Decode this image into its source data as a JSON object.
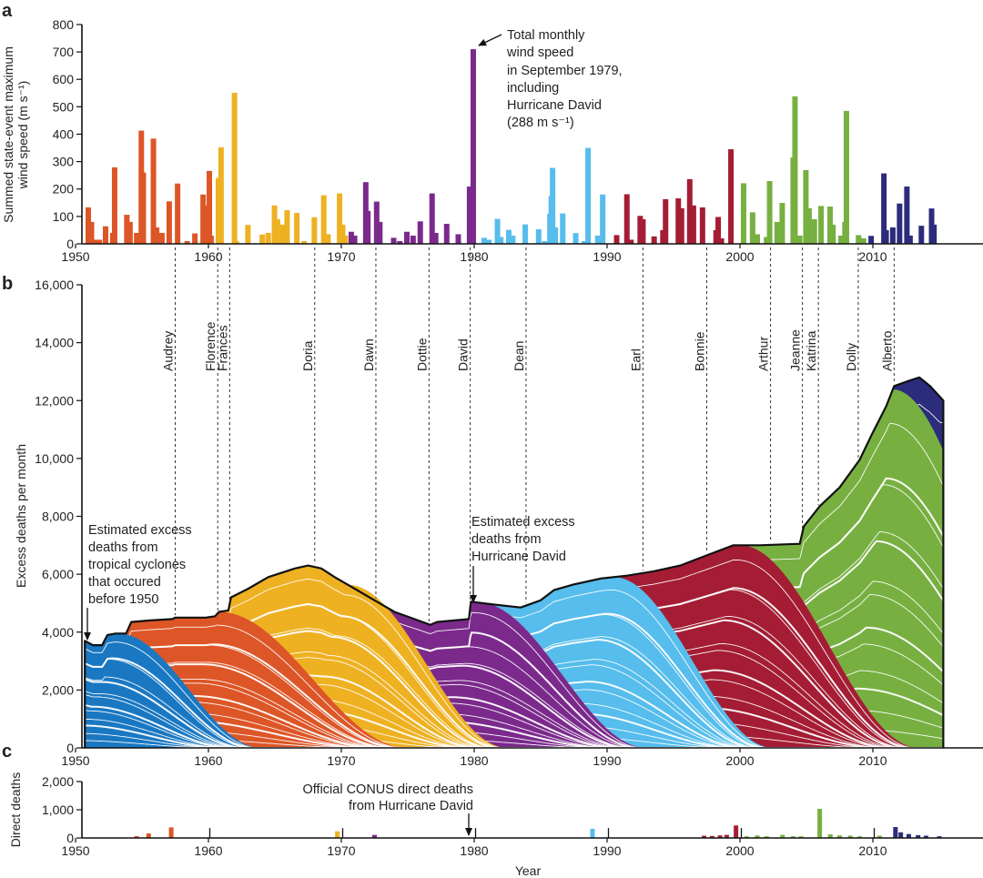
{
  "panels": {
    "a": "a",
    "b": "b",
    "c": "c"
  },
  "chart_data": [
    {
      "id": "a",
      "type": "bar",
      "ylabel_line1": "Summed state-event maximum",
      "ylabel_line2": "wind speed (m s⁻¹)",
      "xlim": [
        1950,
        2017
      ],
      "ylim": [
        0,
        800
      ],
      "yticks": [
        "0",
        "100",
        "200",
        "300",
        "400",
        "500",
        "600",
        "700",
        "800"
      ],
      "ytick_values": [
        0,
        100,
        200,
        300,
        400,
        500,
        600,
        700,
        800
      ],
      "xticks": [
        "1950",
        "1960",
        "1970",
        "1980",
        "1990",
        "2000",
        "2010"
      ],
      "xtick_values": [
        1950,
        1960,
        1970,
        1980,
        1990,
        2000,
        2010
      ],
      "color_breaks": [
        1960.5,
        1970.5,
        1980.3,
        1990.5,
        2000.0,
        2009.5
      ],
      "colors": [
        "#dd5627",
        "#eeb122",
        "#7b2a8c",
        "#56bdec",
        "#a41d34",
        "#77b041",
        "#2b2c7c"
      ],
      "bars": [
        [
          1950.96,
          133
        ],
        [
          1951.2,
          80
        ],
        [
          1951.5,
          15
        ],
        [
          1951.8,
          15
        ],
        [
          1952.26,
          64
        ],
        [
          1952.94,
          279
        ],
        [
          1952.8,
          40
        ],
        [
          1953.86,
          106
        ],
        [
          1954.1,
          80
        ],
        [
          1954.6,
          40
        ],
        [
          1954.95,
          413
        ],
        [
          1955.1,
          260
        ],
        [
          1955.86,
          384
        ],
        [
          1956.1,
          60
        ],
        [
          1956.5,
          40
        ],
        [
          1957.05,
          155
        ],
        [
          1957.68,
          220
        ],
        [
          1958.4,
          10
        ],
        [
          1958.98,
          38
        ],
        [
          1959.6,
          180
        ],
        [
          1959.8,
          140
        ],
        [
          1960.07,
          266
        ],
        [
          1960.2,
          30
        ],
        [
          1960.75,
          240
        ],
        [
          1960.95,
          352
        ],
        [
          1961.96,
          551
        ],
        [
          1962.1,
          10
        ],
        [
          1962.97,
          69
        ],
        [
          1964.05,
          34
        ],
        [
          1964.5,
          40
        ],
        [
          1964.97,
          140
        ],
        [
          1965.2,
          90
        ],
        [
          1965.6,
          70
        ],
        [
          1965.92,
          123
        ],
        [
          1966.65,
          113
        ],
        [
          1967.2,
          10
        ],
        [
          1967.97,
          97
        ],
        [
          1968.68,
          177
        ],
        [
          1969.0,
          35
        ],
        [
          1969.87,
          184
        ],
        [
          1970.1,
          70
        ],
        [
          1970.3,
          30
        ],
        [
          1970.75,
          44
        ],
        [
          1971.0,
          30
        ],
        [
          1971.84,
          225
        ],
        [
          1972.0,
          120
        ],
        [
          1972.66,
          154
        ],
        [
          1972.9,
          80
        ],
        [
          1973.94,
          22
        ],
        [
          1974.4,
          10
        ],
        [
          1974.93,
          44
        ],
        [
          1975.4,
          30
        ],
        [
          1975.94,
          82
        ],
        [
          1976.83,
          184
        ],
        [
          1977.1,
          40
        ],
        [
          1977.93,
          73
        ],
        [
          1978.8,
          35
        ],
        [
          1979.65,
          209
        ],
        [
          1979.93,
          710
        ],
        [
          1980.75,
          22
        ],
        [
          1981.1,
          15
        ],
        [
          1981.75,
          91
        ],
        [
          1982.0,
          25
        ],
        [
          1982.6,
          51
        ],
        [
          1982.9,
          30
        ],
        [
          1983.84,
          71
        ],
        [
          1984.85,
          53
        ],
        [
          1985.3,
          10
        ],
        [
          1985.7,
          110
        ],
        [
          1985.8,
          174
        ],
        [
          1985.9,
          277
        ],
        [
          1986.1,
          60
        ],
        [
          1986.66,
          111
        ],
        [
          1987.64,
          39
        ],
        [
          1988.3,
          10
        ],
        [
          1988.57,
          350
        ],
        [
          1989.3,
          30
        ],
        [
          1989.67,
          180
        ],
        [
          1990.72,
          32
        ],
        [
          1991.49,
          181
        ],
        [
          1991.8,
          15
        ],
        [
          1992.49,
          102
        ],
        [
          1992.7,
          90
        ],
        [
          1993.54,
          27
        ],
        [
          1994.4,
          163
        ],
        [
          1994.2,
          50
        ],
        [
          1995.36,
          166
        ],
        [
          1995.6,
          130
        ],
        [
          1996.22,
          236
        ],
        [
          1996.5,
          140
        ],
        [
          1997.18,
          133
        ],
        [
          1998.36,
          98
        ],
        [
          1998.2,
          50
        ],
        [
          1998.6,
          20
        ],
        [
          1999.32,
          345
        ],
        [
          2000.27,
          221
        ],
        [
          2000.95,
          115
        ],
        [
          2001.3,
          35
        ],
        [
          2002.23,
          229
        ],
        [
          2002.0,
          25
        ],
        [
          2002.8,
          80
        ],
        [
          2003.18,
          149
        ],
        [
          2004.14,
          538
        ],
        [
          2004.0,
          315
        ],
        [
          2004.5,
          30
        ],
        [
          2004.96,
          269
        ],
        [
          2005.2,
          130
        ],
        [
          2005.6,
          90
        ],
        [
          2006.1,
          138
        ],
        [
          2006.78,
          136
        ],
        [
          2007.0,
          70
        ],
        [
          2007.6,
          30
        ],
        [
          2008.01,
          485
        ],
        [
          2007.9,
          80
        ],
        [
          2008.92,
          32
        ],
        [
          2009.3,
          20
        ],
        [
          2009.87,
          29
        ],
        [
          2010.83,
          257
        ],
        [
          2011.0,
          50
        ],
        [
          2011.5,
          60
        ],
        [
          2012.01,
          147
        ],
        [
          2012.56,
          209
        ],
        [
          2012.8,
          30
        ],
        [
          2013.65,
          66
        ],
        [
          2014.42,
          129
        ],
        [
          2014.6,
          70
        ]
      ],
      "annotation": [
        "Total monthly",
        "wind speed",
        "in September 1979,",
        "including",
        "Hurricane David",
        "(288 m s⁻¹)"
      ]
    },
    {
      "id": "b",
      "type": "area",
      "ylabel": "Excess deaths per month",
      "xlim": [
        1950,
        2017
      ],
      "ylim": [
        0,
        16000
      ],
      "yticks": [
        "0",
        "2,000",
        "4,000",
        "6,000",
        "8,000",
        "10,000",
        "12,000",
        "14,000",
        "16,000"
      ],
      "ytick_values": [
        0,
        2000,
        4000,
        6000,
        8000,
        10000,
        12000,
        14000,
        16000
      ],
      "xticks": [
        "1950",
        "1960",
        "1970",
        "1980",
        "1990",
        "2000",
        "2010"
      ],
      "xtick_values": [
        1950,
        1960,
        1970,
        1980,
        1990,
        2000,
        2010
      ],
      "total": [
        [
          1950.7,
          3700
        ],
        [
          1951.3,
          3550
        ],
        [
          1952.0,
          3550
        ],
        [
          1952.4,
          3900
        ],
        [
          1953.0,
          3950
        ],
        [
          1953.8,
          3950
        ],
        [
          1954.2,
          4350
        ],
        [
          1955.5,
          4400
        ],
        [
          1957.3,
          4450
        ],
        [
          1957.5,
          4500
        ],
        [
          1959.8,
          4500
        ],
        [
          1960.5,
          4550
        ],
        [
          1960.8,
          4700
        ],
        [
          1961.5,
          4750
        ],
        [
          1961.7,
          5200
        ],
        [
          1963.0,
          5500
        ],
        [
          1964.5,
          5900
        ],
        [
          1966.5,
          6200
        ],
        [
          1967.5,
          6300
        ],
        [
          1968.5,
          6200
        ],
        [
          1969.5,
          5900
        ],
        [
          1971.0,
          5500
        ],
        [
          1972.5,
          5100
        ],
        [
          1974.0,
          4700
        ],
        [
          1975.5,
          4450
        ],
        [
          1976.7,
          4250
        ],
        [
          1977.2,
          4350
        ],
        [
          1979.6,
          4450
        ],
        [
          1979.75,
          5050
        ],
        [
          1981.5,
          4950
        ],
        [
          1983.5,
          4850
        ],
        [
          1985.0,
          5100
        ],
        [
          1986.0,
          5450
        ],
        [
          1987.5,
          5650
        ],
        [
          1989.5,
          5850
        ],
        [
          1991.5,
          5950
        ],
        [
          1993.5,
          6100
        ],
        [
          1995.5,
          6300
        ],
        [
          1997.5,
          6650
        ],
        [
          1999.5,
          7000
        ],
        [
          2001.5,
          7000
        ],
        [
          2004.5,
          7050
        ],
        [
          2004.8,
          7650
        ],
        [
          2006.0,
          8350
        ],
        [
          2007.5,
          9000
        ],
        [
          2009.0,
          9950
        ],
        [
          2010.0,
          10900
        ],
        [
          2011.0,
          11800
        ],
        [
          2011.6,
          12500
        ],
        [
          2012.5,
          12650
        ],
        [
          2013.5,
          12800
        ],
        [
          2014.3,
          12500
        ],
        [
          2015.3,
          12000
        ]
      ],
      "cohorts": [
        {
          "color": "#1a78c2",
          "start": 1950.7,
          "end": 1953.2,
          "zero_by": 1964.0
        },
        {
          "color": "#dd5627",
          "start": 1951.3,
          "end": 1960.8,
          "zero_by": 1975.0
        },
        {
          "color": "#eeb122",
          "start": 1960.8,
          "end": 1970.5,
          "zero_by": 1982.5
        },
        {
          "color": "#7b2a8c",
          "start": 1970.5,
          "end": 1980.3,
          "zero_by": 1993.0
        },
        {
          "color": "#56bdec",
          "start": 1980.3,
          "end": 1990.5,
          "zero_by": 2002.5
        },
        {
          "color": "#a41d34",
          "start": 1990.5,
          "end": 2000.0,
          "zero_by": 2013.5
        },
        {
          "color": "#77b041",
          "start": 2000.0,
          "end": 2011.5,
          "zero_by": 2025.5
        },
        {
          "color": "#2b2c7c",
          "start": 2011.5,
          "end": 2015.3,
          "zero_by": 2030.0
        }
      ],
      "storms": [
        {
          "name": "Audrey",
          "year": 1957.5
        },
        {
          "name": "Florence",
          "year": 1960.7
        },
        {
          "name": "Frances",
          "year": 1961.6
        },
        {
          "name": "Doria",
          "year": 1968.0
        },
        {
          "name": "Dawn",
          "year": 1972.6
        },
        {
          "name": "Dottie",
          "year": 1976.6
        },
        {
          "name": "David",
          "year": 1979.7
        },
        {
          "name": "Dean",
          "year": 1983.9
        },
        {
          "name": "Earl",
          "year": 1992.7
        },
        {
          "name": "Bonnie",
          "year": 1997.5
        },
        {
          "name": "Arthur",
          "year": 2002.3
        },
        {
          "name": "Jeanne",
          "year": 2004.7
        },
        {
          "name": "Katrina",
          "year": 2005.9
        },
        {
          "name": "Dolly",
          "year": 2008.9
        },
        {
          "name": "Alberto",
          "year": 2011.6
        }
      ],
      "annotation_pre1950": [
        "Estimated excess",
        "deaths from",
        "tropical cyclones",
        "that occured",
        "before 1950"
      ],
      "annotation_david": [
        "Estimated excess",
        "deaths from",
        "Hurricane David"
      ]
    },
    {
      "id": "c",
      "type": "bar",
      "ylabel": "Direct deaths",
      "xlabel": "Year",
      "xlim": [
        1950,
        2017
      ],
      "ylim": [
        0,
        2000
      ],
      "yticks": [
        "0",
        "1,000",
        "2,000"
      ],
      "ytick_values": [
        0,
        1000,
        2000
      ],
      "xticks": [
        "1950",
        "1960",
        "1970",
        "1980",
        "1990",
        "2000",
        "2010"
      ],
      "xtick_values": [
        1950,
        1960,
        1970,
        1980,
        1990,
        2000,
        2010
      ],
      "bars": [
        [
          1954.6,
          65,
          "#dd5627"
        ],
        [
          1955.5,
          161,
          "#dd5627"
        ],
        [
          1957.2,
          376,
          "#dd5627"
        ],
        [
          1960.9,
          20,
          "#eeb122"
        ],
        [
          1969.7,
          237,
          "#eeb122"
        ],
        [
          1972.5,
          108,
          "#7b2a8c"
        ],
        [
          1976.6,
          8,
          "#7b2a8c"
        ],
        [
          1983.7,
          15,
          "#56bdec"
        ],
        [
          1985.7,
          10,
          "#56bdec"
        ],
        [
          1988.9,
          323,
          "#56bdec"
        ],
        [
          1989.8,
          20,
          "#56bdec"
        ],
        [
          1992.2,
          10,
          "#a41d34"
        ],
        [
          1994.3,
          12,
          "#a41d34"
        ],
        [
          1997.3,
          80,
          "#a41d34"
        ],
        [
          1997.9,
          70,
          "#a41d34"
        ],
        [
          1998.5,
          90,
          "#a41d34"
        ],
        [
          1999.0,
          110,
          "#a41d34"
        ],
        [
          1999.7,
          441,
          "#a41d34"
        ],
        [
          2000.5,
          60,
          "#77b041"
        ],
        [
          2001.3,
          90,
          "#77b041"
        ],
        [
          2002.0,
          60,
          "#77b041"
        ],
        [
          2003.2,
          110,
          "#77b041"
        ],
        [
          2004.0,
          60,
          "#77b041"
        ],
        [
          2004.6,
          60,
          "#77b041"
        ],
        [
          2006.0,
          1032,
          "#77b041"
        ],
        [
          2006.8,
          130,
          "#77b041"
        ],
        [
          2007.5,
          90,
          "#77b041"
        ],
        [
          2008.3,
          80,
          "#77b041"
        ],
        [
          2009.0,
          60,
          "#77b041"
        ],
        [
          2010.5,
          80,
          "#77b041"
        ],
        [
          2011.7,
          387,
          "#2b2c7c"
        ],
        [
          2012.1,
          200,
          "#2b2c7c"
        ],
        [
          2012.7,
          140,
          "#2b2c7c"
        ],
        [
          2013.4,
          100,
          "#2b2c7c"
        ],
        [
          2014.0,
          80,
          "#2b2c7c"
        ],
        [
          2015.0,
          60,
          "#2b2c7c"
        ]
      ],
      "markers": [
        1960,
        1970,
        1980,
        1990,
        2000,
        2010
      ],
      "annotation": [
        "Official CONUS direct deaths",
        "from Hurricane David"
      ]
    }
  ]
}
